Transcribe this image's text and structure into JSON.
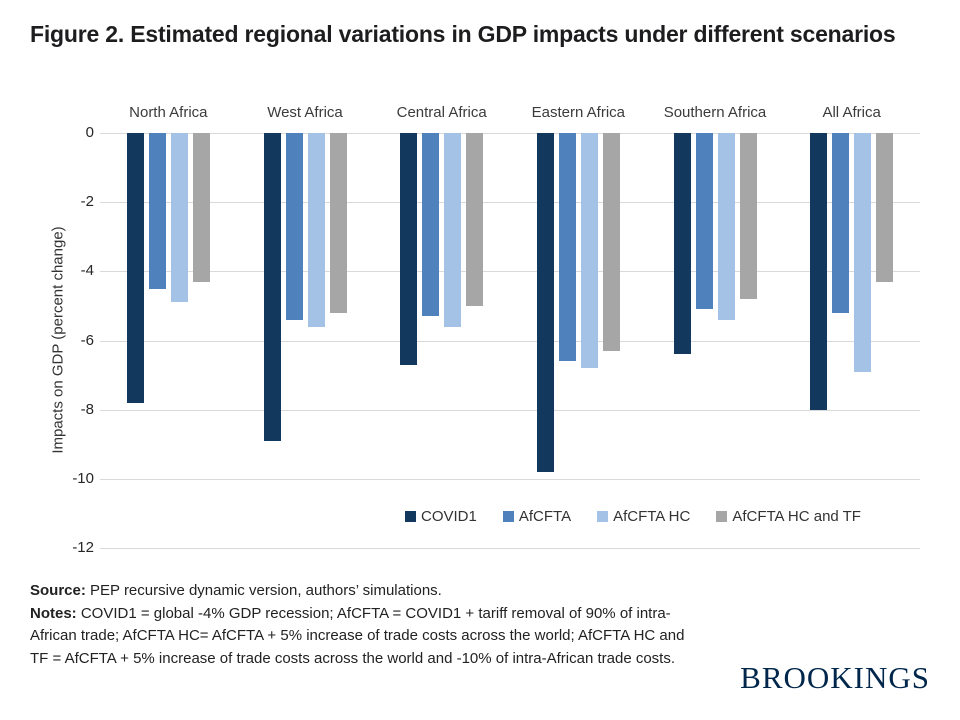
{
  "title": "Figure 2. Estimated regional variations in GDP impacts under different scenarios",
  "chart_data": {
    "type": "bar",
    "orientation": "vertical-negative",
    "categories": [
      "North Africa",
      "West Africa",
      "Central Africa",
      "Eastern Africa",
      "Southern Africa",
      "All Africa"
    ],
    "series": [
      {
        "name": "COVID1",
        "color": "#12395d",
        "values": [
          -7.8,
          -8.9,
          -6.7,
          -9.8,
          -6.4,
          -8.0
        ]
      },
      {
        "name": "AfCFTA",
        "color": "#4f81bd",
        "values": [
          -4.5,
          -5.4,
          -5.3,
          -6.6,
          -5.1,
          -5.2
        ]
      },
      {
        "name": "AfCFTA HC",
        "color": "#a4c2e5",
        "values": [
          -4.9,
          -5.6,
          -5.6,
          -6.8,
          -5.4,
          -6.9
        ]
      },
      {
        "name": "AfCFTA HC and TF",
        "color": "#a6a6a6",
        "values": [
          -4.3,
          -5.2,
          -5.0,
          -6.3,
          -4.8,
          -4.3
        ]
      }
    ],
    "ylabel": "Impacts on GDP (percent change)",
    "ylim": [
      0,
      -12
    ],
    "yticks": [
      0,
      -2,
      -4,
      -6,
      -8,
      -10,
      -12
    ],
    "grid": true,
    "legend_position": "bottom-inside"
  },
  "footer": {
    "source_label": "Source:",
    "source_text": " PEP recursive dynamic version, authors’ simulations.",
    "notes_label": "Notes:",
    "notes_text": " COVID1 = global -4% GDP recession; AfCFTA = COVID1 + tariff removal of 90% of intra-African trade; AfCFTA HC= AfCFTA + 5% increase of trade costs across the world; AfCFTA HC and TF = AfCFTA + 5% increase of trade costs across the world and -10% of intra-African trade costs."
  },
  "branding": {
    "logo_text": "BROOKINGS"
  }
}
